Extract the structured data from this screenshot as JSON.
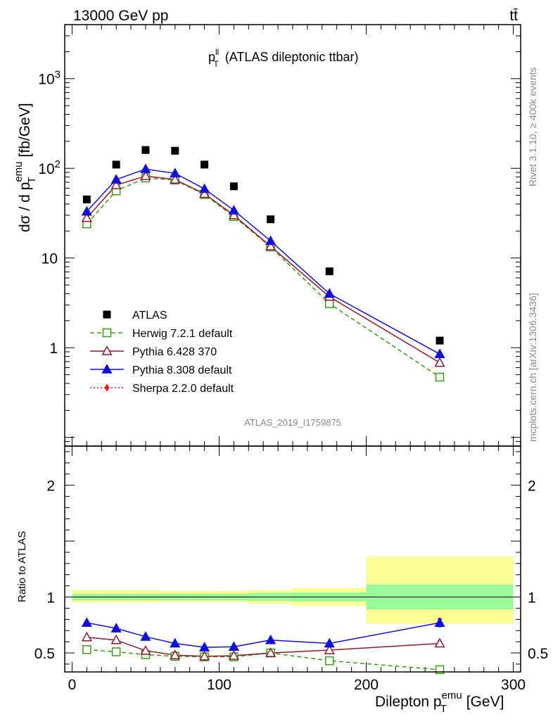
{
  "header": {
    "energy_label": "13000 GeV pp",
    "process_label": "tt̄"
  },
  "side_labels": {
    "rivet": "Rivet 3.1.10, ≥ 400k events",
    "mcplots": "mcplots.cern.ch [arXiv:1306.3436]"
  },
  "chart_data": [
    {
      "type": "line",
      "scale": "log",
      "title": "p_T^ll (ATLAS dileptonic ttbar)",
      "title_parts": {
        "main": "p",
        "sup": "ll",
        "sub": "T",
        "rest": " (ATLAS dileptonic ttbar)"
      },
      "ylabel": "dσ / d p_T^emu [fb/GeV]",
      "ylabel_parts": {
        "main": "dσ / d p",
        "sup": "emu",
        "sub": "T",
        "rest": " [fb/GeV]"
      },
      "analysis_label": "ATLAS_2019_I1759875",
      "xlim": [
        -5,
        305
      ],
      "ylim": [
        0.08,
        4000
      ],
      "yticks": [
        {
          "value": 1,
          "label": "1"
        },
        {
          "value": 10,
          "label": "10"
        },
        {
          "value": 100,
          "label": "10",
          "exp": "2"
        },
        {
          "value": 1000,
          "label": "10",
          "exp": "3"
        }
      ],
      "legend_position": "center-left",
      "series": [
        {
          "name": "ATLAS",
          "marker": "square-filled",
          "color": "#000000",
          "x": [
            10,
            30,
            50,
            70,
            90,
            110,
            135,
            175,
            250
          ],
          "y": [
            45,
            110,
            160,
            157,
            110,
            63,
            27,
            7.1,
            1.2
          ]
        },
        {
          "name": "Herwig 7.2.1 default",
          "marker": "square-open",
          "line": "dashed",
          "color": "#3a9a1a",
          "x": [
            10,
            30,
            50,
            70,
            90,
            110,
            135,
            175,
            250
          ],
          "y": [
            24,
            56,
            78,
            74,
            51,
            29,
            13.3,
            3.1,
            0.47
          ]
        },
        {
          "name": "Pythia 6.428 370",
          "marker": "triangle-open",
          "line": "solid",
          "color": "#8b1a2b",
          "x": [
            10,
            30,
            50,
            70,
            90,
            110,
            135,
            175,
            250
          ],
          "y": [
            28,
            65,
            82,
            75,
            52,
            30,
            13.5,
            3.7,
            0.68
          ]
        },
        {
          "name": "Pythia 8.308 default",
          "marker": "triangle-filled",
          "line": "solid",
          "color": "#1010d8",
          "x": [
            10,
            30,
            50,
            70,
            90,
            110,
            135,
            175,
            250
          ],
          "y": [
            33,
            75,
            98,
            88,
            59,
            34,
            15.5,
            4.0,
            0.85
          ]
        },
        {
          "name": "Sherpa 2.2.0 default",
          "marker": "diamond-filled",
          "line": "dotted",
          "color": "#ee1111",
          "x": [],
          "y": []
        }
      ]
    },
    {
      "type": "line",
      "scale": "linear",
      "ylabel": "Ratio to ATLAS",
      "xlabel": "Dilepton p_T^emu [GeV]",
      "xlabel_parts": {
        "main": "Dilepton p",
        "sup": "emu",
        "sub": "T",
        "rest": " [GeV]"
      },
      "xlim": [
        -5,
        305
      ],
      "ylim": [
        0.33,
        2.35
      ],
      "xticks": [
        {
          "value": 0,
          "label": "0"
        },
        {
          "value": 100,
          "label": "100"
        },
        {
          "value": 200,
          "label": "200"
        },
        {
          "value": 300,
          "label": "300"
        }
      ],
      "yticks": [
        {
          "value": 0.5,
          "label": "0.5"
        },
        {
          "value": 1,
          "label": "1"
        },
        {
          "value": 2,
          "label": "2"
        }
      ],
      "uncertainty_bands": [
        {
          "x0": 0,
          "x1": 20,
          "inner": [
            0.97,
            1.03
          ],
          "outer": [
            0.95,
            1.06
          ]
        },
        {
          "x0": 20,
          "x1": 40,
          "inner": [
            0.97,
            1.03
          ],
          "outer": [
            0.95,
            1.06
          ]
        },
        {
          "x0": 40,
          "x1": 60,
          "inner": [
            0.97,
            1.03
          ],
          "outer": [
            0.95,
            1.06
          ]
        },
        {
          "x0": 60,
          "x1": 80,
          "inner": [
            0.97,
            1.03
          ],
          "outer": [
            0.955,
            1.055
          ]
        },
        {
          "x0": 80,
          "x1": 100,
          "inner": [
            0.97,
            1.03
          ],
          "outer": [
            0.955,
            1.055
          ]
        },
        {
          "x0": 100,
          "x1": 120,
          "inner": [
            0.97,
            1.03
          ],
          "outer": [
            0.955,
            1.055
          ]
        },
        {
          "x0": 120,
          "x1": 150,
          "inner": [
            0.965,
            1.035
          ],
          "outer": [
            0.94,
            1.06
          ]
        },
        {
          "x0": 150,
          "x1": 200,
          "inner": [
            0.96,
            1.04
          ],
          "outer": [
            0.92,
            1.08
          ]
        },
        {
          "x0": 200,
          "x1": 300,
          "inner": [
            0.89,
            1.11
          ],
          "outer": [
            0.76,
            1.36
          ]
        }
      ],
      "band_colors": {
        "inner": "#98fb98",
        "outer": "#fdfd96"
      },
      "series": [
        {
          "name": "Herwig 7.2.1 default",
          "marker": "square-open",
          "line": "dashed",
          "color": "#3a9a1a",
          "x": [
            10,
            30,
            50,
            70,
            90,
            110,
            135,
            175,
            250
          ],
          "y": [
            0.53,
            0.51,
            0.485,
            0.47,
            0.465,
            0.465,
            0.5,
            0.43,
            0.35
          ],
          "err": [
            0,
            0,
            0,
            0,
            0,
            0,
            0,
            0,
            0.02
          ]
        },
        {
          "name": "Pythia 6.428 370",
          "marker": "triangle-open",
          "line": "solid",
          "color": "#8b1a2b",
          "x": [
            10,
            30,
            50,
            70,
            90,
            110,
            135,
            175,
            250
          ],
          "y": [
            0.64,
            0.615,
            0.52,
            0.48,
            0.47,
            0.475,
            0.5,
            0.525,
            0.585
          ],
          "err": [
            0,
            0,
            0,
            0,
            0,
            0,
            0,
            0,
            0.02
          ]
        },
        {
          "name": "Pythia 8.308 default",
          "marker": "triangle-filled",
          "line": "solid",
          "color": "#1010d8",
          "x": [
            10,
            30,
            50,
            70,
            90,
            110,
            135,
            175,
            250
          ],
          "y": [
            0.77,
            0.72,
            0.645,
            0.585,
            0.55,
            0.555,
            0.615,
            0.585,
            0.77
          ],
          "err": [
            0,
            0,
            0,
            0,
            0,
            0,
            0,
            0.015,
            0.035
          ]
        }
      ]
    }
  ]
}
